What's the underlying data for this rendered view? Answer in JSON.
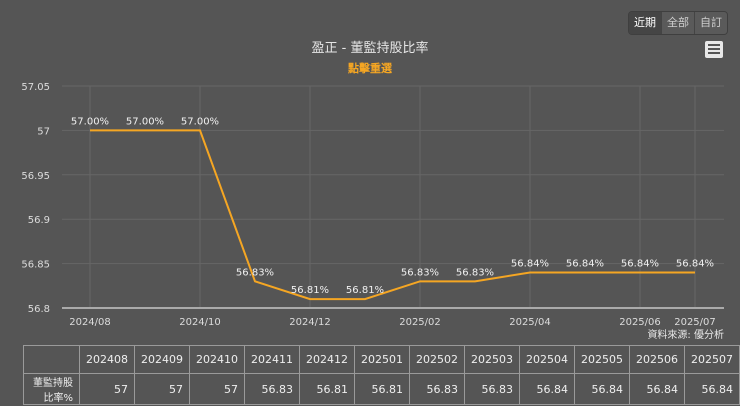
{
  "controls": {
    "range_buttons": [
      {
        "label": "近期",
        "active": true
      },
      {
        "label": "全部",
        "active": false
      },
      {
        "label": "自訂",
        "active": false
      }
    ],
    "menu_icon": "hamburger-menu-icon"
  },
  "chart": {
    "title": "盈正 - 董監持股比率",
    "subtitle": "點擊重選",
    "source": "資料來源: 優分析",
    "line_color": "#f5a623"
  },
  "chart_data": {
    "type": "line",
    "title": "盈正 - 董監持股比率",
    "xlabel": "",
    "ylabel": "",
    "ylim": [
      56.8,
      57.05
    ],
    "y_ticks": [
      "56.8",
      "56.85",
      "56.9",
      "56.95",
      "57",
      "57.05"
    ],
    "x_ticks": [
      "2024/08",
      "2024/10",
      "2024/12",
      "2025/02",
      "2025/04",
      "2025/06",
      "2025/07"
    ],
    "grid": true,
    "categories": [
      "202408",
      "202409",
      "202410",
      "202411",
      "202412",
      "202501",
      "202502",
      "202503",
      "202504",
      "202505",
      "202506",
      "202507"
    ],
    "series": [
      {
        "name": "董監持股比率%",
        "values": [
          57,
          57,
          57,
          56.83,
          56.81,
          56.81,
          56.83,
          56.83,
          56.84,
          56.84,
          56.84,
          56.84
        ],
        "labels": [
          "57.00%",
          "57.00%",
          "57.00%",
          "56.83%",
          "56.81%",
          "56.81%",
          "56.83%",
          "56.83%",
          "56.84%",
          "56.84%",
          "56.84%",
          "56.84%"
        ]
      }
    ]
  },
  "table": {
    "row_label": "董監持股比率%",
    "headers": [
      "202408",
      "202409",
      "202410",
      "202411",
      "202412",
      "202501",
      "202502",
      "202503",
      "202504",
      "202505",
      "202506",
      "202507"
    ],
    "values": [
      "57",
      "57",
      "57",
      "56.83",
      "56.81",
      "56.81",
      "56.83",
      "56.83",
      "56.84",
      "56.84",
      "56.84",
      "56.84"
    ]
  }
}
